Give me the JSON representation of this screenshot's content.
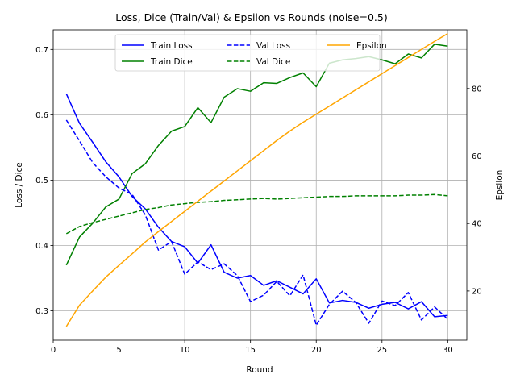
{
  "chart_data": {
    "type": "line",
    "title": "Loss, Dice (Train/Val) & Epsilon vs Rounds (noise=0.5)",
    "xlabel": "Round",
    "ylabel": "Loss / Dice",
    "y2label": "Epsilon",
    "xlim": [
      0,
      31.45
    ],
    "ylim": [
      0.255,
      0.73
    ],
    "y2lim": [
      5.4,
      97.4
    ],
    "xticks": [
      0,
      5,
      10,
      15,
      20,
      25,
      30
    ],
    "yticks": [
      0.3,
      0.4,
      0.5,
      0.6,
      0.7
    ],
    "y2ticks": [
      20,
      40,
      60,
      80
    ],
    "grid": true,
    "legend_position": "top-center",
    "x": [
      1,
      2,
      3,
      4,
      5,
      6,
      7,
      8,
      9,
      10,
      11,
      12,
      13,
      14,
      15,
      16,
      17,
      18,
      19,
      20,
      21,
      22,
      23,
      24,
      25,
      26,
      27,
      28,
      29,
      30
    ],
    "series": [
      {
        "name": "Train Loss",
        "axis": "left",
        "color": "#0000ff",
        "dash": "solid",
        "values": [
          0.632,
          0.587,
          0.558,
          0.528,
          0.505,
          0.475,
          0.456,
          0.428,
          0.406,
          0.398,
          0.373,
          0.401,
          0.359,
          0.35,
          0.354,
          0.339,
          0.346,
          0.336,
          0.326,
          0.349,
          0.312,
          0.316,
          0.313,
          0.304,
          0.31,
          0.313,
          0.303,
          0.314,
          0.291,
          0.293
        ]
      },
      {
        "name": "Dice",
        "axis": "left",
        "color": "#008000",
        "dash": "solid",
        "values": [
          0.37,
          0.413,
          0.434,
          0.459,
          0.471,
          0.51,
          0.525,
          0.553,
          0.575,
          0.582,
          0.611,
          0.588,
          0.627,
          0.64,
          0.636,
          0.649,
          0.648,
          0.657,
          0.664,
          0.643,
          0.679,
          0.684,
          0.686,
          0.689,
          0.684,
          0.678,
          0.693,
          0.687,
          0.708,
          0.705
        ]
      },
      {
        "name": "Val Loss",
        "axis": "left",
        "color": "#0000ff",
        "dash": "dashed",
        "values": [
          0.592,
          0.56,
          0.527,
          0.505,
          0.488,
          0.478,
          0.447,
          0.393,
          0.406,
          0.356,
          0.375,
          0.363,
          0.372,
          0.354,
          0.314,
          0.324,
          0.345,
          0.323,
          0.355,
          0.278,
          0.31,
          0.33,
          0.313,
          0.281,
          0.315,
          0.308,
          0.328,
          0.286,
          0.306,
          0.287
        ]
      },
      {
        "name": "Val Dice",
        "axis": "left",
        "color": "#008000",
        "dash": "dashed",
        "values": [
          0.418,
          0.429,
          0.435,
          0.44,
          0.445,
          0.45,
          0.455,
          0.458,
          0.462,
          0.464,
          0.466,
          0.467,
          0.469,
          0.47,
          0.471,
          0.472,
          0.471,
          0.472,
          0.473,
          0.474,
          0.475,
          0.475,
          0.476,
          0.476,
          0.476,
          0.476,
          0.477,
          0.477,
          0.478,
          0.476
        ]
      },
      {
        "name": "Epsilon",
        "axis": "right",
        "color": "#ffa500",
        "dash": "solid",
        "values": [
          9.5,
          15.8,
          20.0,
          24.1,
          27.6,
          31.0,
          34.5,
          37.6,
          40.6,
          43.6,
          46.6,
          49.6,
          52.6,
          55.6,
          58.6,
          61.6,
          64.6,
          67.4,
          70.0,
          72.4,
          74.8,
          77.2,
          79.6,
          82.0,
          84.4,
          86.8,
          89.2,
          91.6,
          94.0,
          96.3
        ]
      }
    ],
    "legend": [
      {
        "label": "Train Loss",
        "color": "#0000ff",
        "dash": "solid"
      },
      {
        "label": "Train Dice",
        "color": "#008000",
        "dash": "solid"
      },
      {
        "label": "Val Loss",
        "color": "#0000ff",
        "dash": "dashed"
      },
      {
        "label": "Val Dice",
        "color": "#008000",
        "dash": "dashed"
      },
      {
        "label": "Epsilon",
        "color": "#ffa500",
        "dash": "solid"
      }
    ]
  }
}
